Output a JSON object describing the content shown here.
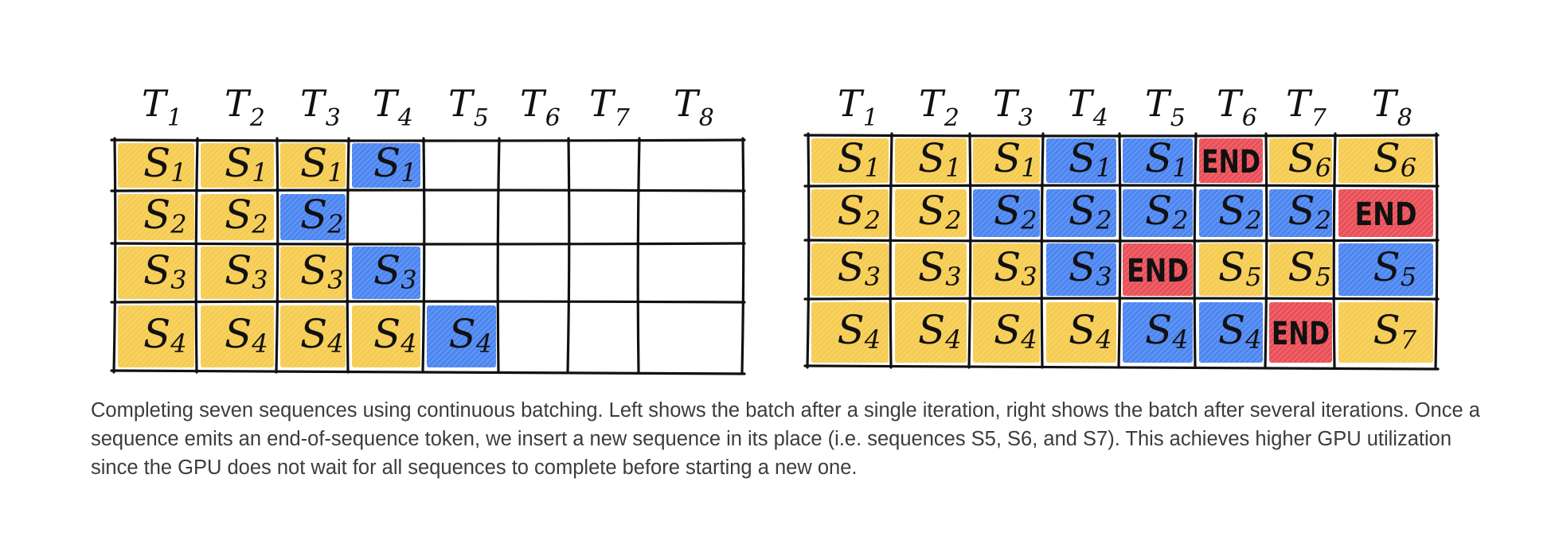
{
  "time_labels": [
    {
      "letter": "T",
      "sub": "1"
    },
    {
      "letter": "T",
      "sub": "2"
    },
    {
      "letter": "T",
      "sub": "3"
    },
    {
      "letter": "T",
      "sub": "4"
    },
    {
      "letter": "T",
      "sub": "5"
    },
    {
      "letter": "T",
      "sub": "6"
    },
    {
      "letter": "T",
      "sub": "7"
    },
    {
      "letter": "T",
      "sub": "8"
    }
  ],
  "colors": {
    "yellow": "#f5c842",
    "blue": "#3d7cf0",
    "red": "#e8404a",
    "ink": "#111111",
    "caption": "#3c3c3c"
  },
  "left_grid": {
    "rows": [
      [
        {
          "text": "S",
          "sub": "1",
          "fill": "yellow"
        },
        {
          "text": "S",
          "sub": "1",
          "fill": "yellow"
        },
        {
          "text": "S",
          "sub": "1",
          "fill": "yellow"
        },
        {
          "text": "S",
          "sub": "1",
          "fill": "blue"
        },
        null,
        null,
        null,
        null
      ],
      [
        {
          "text": "S",
          "sub": "2",
          "fill": "yellow"
        },
        {
          "text": "S",
          "sub": "2",
          "fill": "yellow"
        },
        {
          "text": "S",
          "sub": "2",
          "fill": "blue"
        },
        null,
        null,
        null,
        null,
        null
      ],
      [
        {
          "text": "S",
          "sub": "3",
          "fill": "yellow"
        },
        {
          "text": "S",
          "sub": "3",
          "fill": "yellow"
        },
        {
          "text": "S",
          "sub": "3",
          "fill": "yellow"
        },
        {
          "text": "S",
          "sub": "3",
          "fill": "blue"
        },
        null,
        null,
        null,
        null
      ],
      [
        {
          "text": "S",
          "sub": "4",
          "fill": "yellow"
        },
        {
          "text": "S",
          "sub": "4",
          "fill": "yellow"
        },
        {
          "text": "S",
          "sub": "4",
          "fill": "yellow"
        },
        {
          "text": "S",
          "sub": "4",
          "fill": "yellow"
        },
        {
          "text": "S",
          "sub": "4",
          "fill": "blue"
        },
        null,
        null,
        null
      ]
    ]
  },
  "right_grid": {
    "rows": [
      [
        {
          "text": "S",
          "sub": "1",
          "fill": "yellow"
        },
        {
          "text": "S",
          "sub": "1",
          "fill": "yellow"
        },
        {
          "text": "S",
          "sub": "1",
          "fill": "yellow"
        },
        {
          "text": "S",
          "sub": "1",
          "fill": "blue"
        },
        {
          "text": "S",
          "sub": "1",
          "fill": "blue"
        },
        {
          "text": "END",
          "sub": "",
          "fill": "red"
        },
        {
          "text": "S",
          "sub": "6",
          "fill": "yellow"
        },
        {
          "text": "S",
          "sub": "6",
          "fill": "yellow"
        }
      ],
      [
        {
          "text": "S",
          "sub": "2",
          "fill": "yellow"
        },
        {
          "text": "S",
          "sub": "2",
          "fill": "yellow"
        },
        {
          "text": "S",
          "sub": "2",
          "fill": "blue"
        },
        {
          "text": "S",
          "sub": "2",
          "fill": "blue"
        },
        {
          "text": "S",
          "sub": "2",
          "fill": "blue"
        },
        {
          "text": "S",
          "sub": "2",
          "fill": "blue"
        },
        {
          "text": "S",
          "sub": "2",
          "fill": "blue"
        },
        {
          "text": "END",
          "sub": "",
          "fill": "red"
        }
      ],
      [
        {
          "text": "S",
          "sub": "3",
          "fill": "yellow"
        },
        {
          "text": "S",
          "sub": "3",
          "fill": "yellow"
        },
        {
          "text": "S",
          "sub": "3",
          "fill": "yellow"
        },
        {
          "text": "S",
          "sub": "3",
          "fill": "blue"
        },
        {
          "text": "END",
          "sub": "",
          "fill": "red"
        },
        {
          "text": "S",
          "sub": "5",
          "fill": "yellow"
        },
        {
          "text": "S",
          "sub": "5",
          "fill": "yellow"
        },
        {
          "text": "S",
          "sub": "5",
          "fill": "blue"
        }
      ],
      [
        {
          "text": "S",
          "sub": "4",
          "fill": "yellow"
        },
        {
          "text": "S",
          "sub": "4",
          "fill": "yellow"
        },
        {
          "text": "S",
          "sub": "4",
          "fill": "yellow"
        },
        {
          "text": "S",
          "sub": "4",
          "fill": "yellow"
        },
        {
          "text": "S",
          "sub": "4",
          "fill": "blue"
        },
        {
          "text": "S",
          "sub": "4",
          "fill": "blue"
        },
        {
          "text": "END",
          "sub": "",
          "fill": "red"
        },
        {
          "text": "S",
          "sub": "7",
          "fill": "yellow"
        }
      ]
    ]
  },
  "caption": "Completing seven sequences using continuous batching. Left shows the batch after a single iteration, right shows the batch after several iterations. Once a sequence emits an end-of-sequence token, we insert a new sequence in its place (i.e. sequences S5, S6, and S7). This achieves higher GPU utilization since the GPU does not wait for all sequences to complete before starting a new one."
}
